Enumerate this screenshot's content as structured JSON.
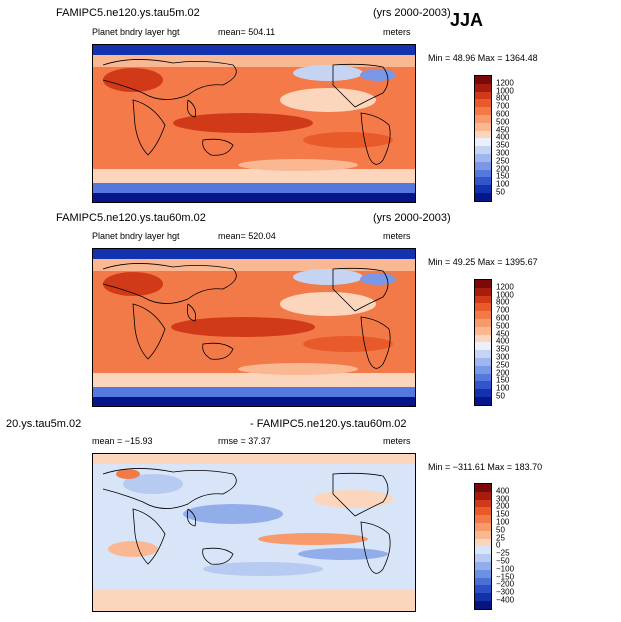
{
  "season": "JJA",
  "panels": [
    {
      "case": "FAMIPC5.ne120.ys.tau5m.02",
      "years": "(yrs 2000-2003)",
      "variable": "Planet bndry layer hgt",
      "stat": "mean=  504.11",
      "units": "meters",
      "minmax": "Min =  48.96  Max = 1364.48",
      "scale": "abs"
    },
    {
      "case": "FAMIPC5.ne120.ys.tau60m.02",
      "years": "(yrs 2000-2003)",
      "variable": "Planet bndry layer hgt",
      "stat": "mean=  520.04",
      "units": "meters",
      "minmax": "Min =  49.25  Max = 1395.67",
      "scale": "abs"
    },
    {
      "case_left": "20.ys.tau5m.02",
      "case_right": "- FAMIPC5.ne120.ys.tau60m.02",
      "stat": "mean = −15.93",
      "rmse": "rmse =  37.37",
      "units": "meters",
      "minmax": "Min = −311.61  Max = 183.70",
      "scale": "diff"
    }
  ],
  "colorbars": {
    "abs": {
      "labels": [
        "1200",
        "1000",
        "800",
        "700",
        "600",
        "500",
        "450",
        "400",
        "350",
        "300",
        "250",
        "200",
        "150",
        "100",
        "50"
      ],
      "colors": [
        "#7a0a0a",
        "#a81c0e",
        "#d03a18",
        "#e85a2a",
        "#f27a48",
        "#f79a6c",
        "#fab892",
        "#fcd6bc",
        "#ecf0fa",
        "#c6d4f4",
        "#9fb6ee",
        "#7b98e6",
        "#5478de",
        "#3156cc",
        "#1232b0",
        "#06168a"
      ]
    },
    "diff": {
      "labels": [
        "400",
        "300",
        "200",
        "150",
        "100",
        "50",
        "25",
        "0",
        "−25",
        "−50",
        "−100",
        "−150",
        "−200",
        "−300",
        "−400"
      ],
      "colors": [
        "#7a0a0a",
        "#a81c0e",
        "#d03a18",
        "#e85a2a",
        "#f27a48",
        "#f79a6c",
        "#fab892",
        "#fcd6bc",
        "#d8e4f8",
        "#b6caf2",
        "#92aeea",
        "#6e90e2",
        "#4a70d6",
        "#2c50c4",
        "#1232a8",
        "#061480"
      ]
    }
  }
}
